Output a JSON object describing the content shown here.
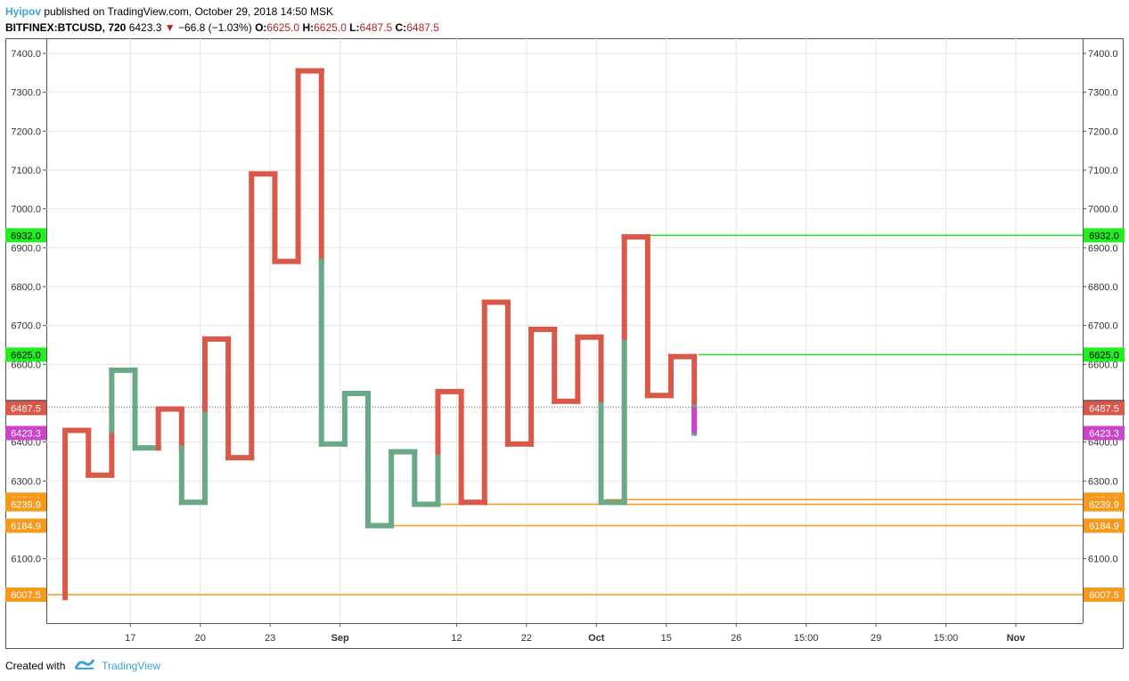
{
  "header": {
    "author": "Hyipov",
    "published_text": "published on TradingView.com, October 29, 2018 14:50 MSK",
    "symbol": "BITFINEX:BTCUSD, 720",
    "last": "6423.3",
    "change": "−66.8 (−1.03%)",
    "o_label": "O:",
    "o": "6625.0",
    "h_label": "H:",
    "h": "6625.0",
    "l_label": "L:",
    "l": "6487.5",
    "c_label": "C:",
    "c": "6487.5"
  },
  "footer": {
    "created_with": "Created with",
    "brand": "TradingView"
  },
  "colors": {
    "up": "#6aa886",
    "down": "#d9584a",
    "current": "#cc44cc",
    "hline_green": "#22dd22",
    "hline_orange": "#f59a1c",
    "badge_green": "#22ee22",
    "badge_orange": "#f59a1c",
    "badge_dark": "#444444",
    "badge_red": "#d9584a",
    "badge_magenta": "#cc44cc",
    "grid": "#e6e6e6"
  },
  "chart_data": {
    "type": "line",
    "style": "kagi",
    "ylim": [
      5915,
      7435
    ],
    "y_ticks": [
      "6100.0",
      "6300.0",
      "6400.0",
      "6600.0",
      "6700.0",
      "6800.0",
      "6900.0",
      "7000.0",
      "7100.0",
      "7200.0",
      "7300.0",
      "7400.0"
    ],
    "x_ticks": [
      {
        "x": 3.3,
        "label": "17"
      },
      {
        "x": 6.3,
        "label": "20"
      },
      {
        "x": 9.3,
        "label": "23"
      },
      {
        "x": 12.3,
        "label": "Sep"
      },
      {
        "x": 17.3,
        "label": "12"
      },
      {
        "x": 20.3,
        "label": "22"
      },
      {
        "x": 23.3,
        "label": "Oct"
      },
      {
        "x": 26.3,
        "label": "15"
      },
      {
        "x": 29.3,
        "label": "26"
      },
      {
        "x": 32.3,
        "label": "15:00"
      },
      {
        "x": 35.3,
        "label": "29"
      },
      {
        "x": 38.3,
        "label": "15:00"
      },
      {
        "x": 41.3,
        "label": "Nov"
      }
    ],
    "x_range": [
      -0.5,
      45.1
    ],
    "kagi": {
      "x": [
        0,
        1,
        2,
        3,
        4,
        5,
        6,
        7,
        8,
        9,
        10,
        11,
        12,
        13,
        14,
        15,
        16,
        17,
        18,
        19,
        20,
        21,
        22,
        23,
        24,
        25,
        26,
        27,
        28
      ],
      "y": [
        6000,
        6430,
        6315,
        6585,
        6385,
        6485,
        6245,
        6665,
        6360,
        7090,
        6865,
        7355,
        6395,
        6525,
        6185,
        6375,
        6240,
        6530,
        6245,
        6760,
        6395,
        6690,
        6505,
        6670,
        6245,
        6928,
        6520,
        6620,
        6423
      ],
      "reversals": [
        {
          "x": 3,
          "y": 6430
        },
        {
          "x": 5,
          "y": 6385
        },
        {
          "x": 6,
          "y": 6385
        },
        {
          "x": 7,
          "y": 6485
        },
        {
          "x": 12,
          "y": 6865
        },
        {
          "x": 17,
          "y": 6375
        },
        {
          "x": 24,
          "y": 6495
        },
        {
          "x": 25,
          "y": 6670
        },
        {
          "x": 28,
          "y": 6490
        }
      ]
    },
    "hlines": [
      {
        "value": 6932.0,
        "label": "6932.0",
        "color": "green",
        "from": 25
      },
      {
        "value": 6625.0,
        "label": "6625.0",
        "color": "green",
        "from": 28
      },
      {
        "value": 6251.9,
        "label": "6251.9",
        "color": "orange",
        "from": 24
      },
      {
        "value": 6239.9,
        "label": "6239.9",
        "color": "orange",
        "from": 16
      },
      {
        "value": 6184.9,
        "label": "6184.9",
        "color": "orange",
        "from": 14
      },
      {
        "value": 6007.5,
        "label": "6007.5",
        "color": "orange",
        "from": 0
      }
    ],
    "price_badges": [
      {
        "value": 6490.1,
        "label": "6490.1",
        "color": "dark",
        "dotted": true
      },
      {
        "value": 6487.5,
        "label": "6487.5",
        "color": "red"
      },
      {
        "value": 6423.3,
        "label": "6423.3",
        "color": "magenta"
      }
    ]
  }
}
